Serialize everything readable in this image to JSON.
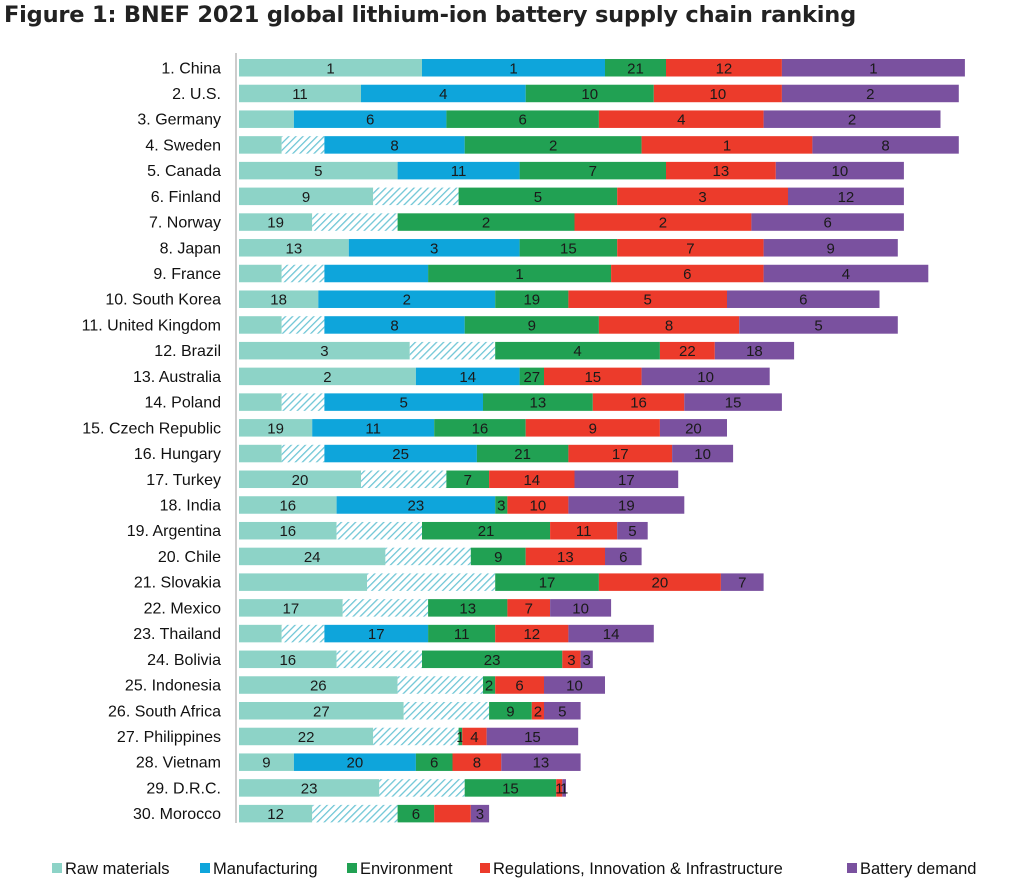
{
  "chart_data": {
    "type": "bar",
    "orientation": "horizontal",
    "stacked": true,
    "title": "Figure 1: BNEF 2021 global lithium-ion battery supply chain ranking",
    "xlabel": "",
    "ylabel": "",
    "grid": false,
    "legend_position": "bottom",
    "categories": [
      "1. China",
      "2. U.S.",
      "3. Germany",
      "4. Sweden",
      "5. Canada",
      "6. Finland",
      "7. Norway",
      "8. Japan",
      "9. France",
      "10. South Korea",
      "11. United Kingdom",
      "12. Brazil",
      "13. Australia",
      "14. Poland",
      "15. Czech Republic",
      "16. Hungary",
      "17. Turkey",
      "18. India",
      "19. Argentina",
      "20. Chile",
      "21. Slovakia",
      "22. Mexico",
      "23. Thailand",
      "24. Bolivia",
      "25. Indonesia",
      "26. South Africa",
      "27. Philippines",
      "28. Vietnam",
      "29. D.R.C.",
      "30. Morocco"
    ],
    "series": [
      {
        "name": "Raw materials",
        "color": "#8dd3c7",
        "hatch_color": "#7ecbd8",
        "values": [
          15,
          10,
          4.5,
          3.5,
          13,
          11,
          6,
          9,
          3.5,
          6.5,
          3.5,
          14,
          14.5,
          3.5,
          6,
          3.5,
          10,
          8,
          8,
          12,
          10.5,
          8.5,
          3.5,
          8,
          13,
          13.5,
          11,
          4.5,
          11.5,
          6
        ],
        "hatched": [
          0,
          0,
          0,
          0,
          0,
          0,
          0,
          0,
          0,
          0,
          0,
          0,
          0,
          0,
          0,
          0,
          0,
          0,
          0,
          0,
          0,
          0,
          0,
          0,
          0,
          0,
          0,
          0,
          0,
          0
        ],
        "labels": [
          "1",
          "11",
          "",
          "",
          "5",
          "9",
          "19",
          "13",
          "",
          "18",
          "",
          "3",
          "2",
          "",
          "19",
          "",
          "20",
          "16",
          "16",
          "24",
          "",
          "17",
          "",
          "16",
          "26",
          "27",
          "22",
          "9",
          "23",
          "12"
        ]
      },
      {
        "name": "Raw materials (hatched)",
        "legend": false,
        "hatched_pattern": true,
        "values": [
          0,
          0,
          0,
          3.5,
          0,
          7,
          7,
          0,
          3.5,
          0,
          3.5,
          7,
          0,
          3.5,
          0,
          3.5,
          7,
          0,
          7,
          7,
          10.5,
          7,
          3.5,
          7,
          7,
          7,
          7,
          0,
          7,
          7
        ],
        "labels": [
          "",
          "",
          "",
          "",
          "",
          "",
          "",
          "",
          "",
          "",
          "",
          "",
          "",
          "",
          "",
          "",
          "",
          "",
          "",
          "",
          "",
          "",
          "",
          "",
          "",
          "",
          "",
          "",
          "",
          ""
        ]
      },
      {
        "name": "Manufacturing",
        "color": "#0ea5db",
        "values": [
          15,
          13.5,
          12.5,
          11.5,
          10,
          0,
          0,
          14,
          8.5,
          14.5,
          11.5,
          0,
          8.5,
          13,
          10,
          12.5,
          0,
          13,
          0,
          0,
          0,
          0,
          8.5,
          0,
          0,
          0,
          0,
          10,
          0,
          0
        ],
        "labels": [
          "1",
          "4",
          "6",
          "8",
          "11",
          "",
          "",
          "3",
          "",
          "2",
          "8",
          "",
          "14",
          "5",
          "11",
          "25",
          "",
          "23",
          "",
          "",
          "",
          "",
          "17",
          "",
          "",
          "",
          "",
          "20",
          "",
          ""
        ]
      },
      {
        "name": "Environment",
        "color": "#21a153",
        "values": [
          5,
          10.5,
          12.5,
          14.5,
          12,
          13,
          14.5,
          8,
          15,
          6,
          11,
          13.5,
          2,
          9,
          7.5,
          7.5,
          3.5,
          1,
          10.5,
          4.5,
          8.5,
          6.5,
          5.5,
          11.5,
          1,
          3.5,
          0.3,
          3,
          7.5,
          3
        ],
        "labels": [
          "21",
          "10",
          "6",
          "2",
          "7",
          "5",
          "2",
          "15",
          "1",
          "19",
          "9",
          "4",
          "27",
          "13",
          "16",
          "21",
          "7",
          "3",
          "21",
          "9",
          "17",
          "13",
          "11",
          "23",
          "2",
          "9",
          "1",
          "6",
          "15",
          "6"
        ]
      },
      {
        "name": "Regulations, Innovation & Infrastructure",
        "color": "#ec3b2b",
        "values": [
          9.5,
          10.5,
          13.5,
          14,
          9,
          14,
          14.5,
          12,
          12.5,
          13,
          11.5,
          4.5,
          8,
          7.5,
          11,
          8.5,
          7,
          5,
          5.5,
          6.5,
          10,
          3.5,
          6,
          1.5,
          4,
          1,
          2,
          4,
          0.5,
          3
        ],
        "labels": [
          "12",
          "10",
          "4",
          "1",
          "13",
          "3",
          "2",
          "7",
          "6",
          "5",
          "8",
          "22",
          "15",
          "16",
          "9",
          "17",
          "14",
          "10",
          "11",
          "13",
          "20",
          "7",
          "12",
          "3",
          "6",
          "2",
          "4",
          "8",
          "1",
          ""
        ]
      },
      {
        "name": "Battery demand",
        "color": "#7a519f",
        "values": [
          15,
          14.5,
          14.5,
          12,
          10.5,
          9.5,
          12.5,
          11,
          13.5,
          12.5,
          13,
          6.5,
          10.5,
          8,
          5.5,
          5,
          8.5,
          9.5,
          2.5,
          3,
          3.5,
          5,
          7,
          1,
          5,
          3,
          7.5,
          6.5,
          0.3,
          1.5
        ],
        "labels": [
          "1",
          "2",
          "2",
          "8",
          "10",
          "12",
          "6",
          "9",
          "4",
          "6",
          "5",
          "18",
          "10",
          "15",
          "20",
          "10",
          "17",
          "19",
          "5",
          "6",
          "7",
          "10",
          "14",
          "3",
          "10",
          "5",
          "15",
          "13",
          "1",
          "3"
        ]
      }
    ]
  }
}
